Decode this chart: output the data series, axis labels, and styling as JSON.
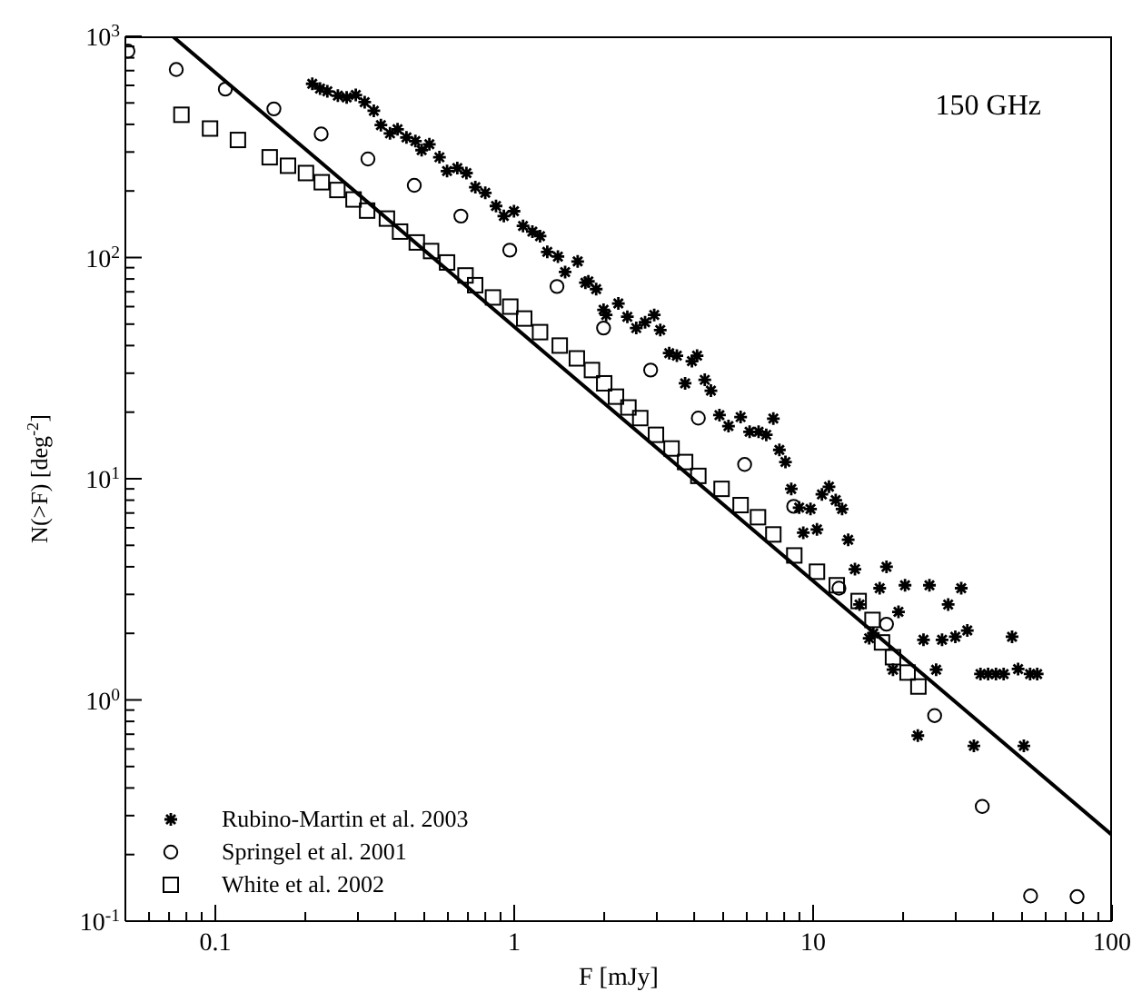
{
  "chart_data": {
    "type": "scatter",
    "xlabel": "F [mJy]",
    "ylabel": "N(>F) [deg$^{-2}$]",
    "annotations": [
      "150 GHz"
    ],
    "log": "xy",
    "grid": false,
    "legend": "bottom left",
    "xlim": [
      0.05,
      100
    ],
    "ylim": [
      0.1,
      1000
    ],
    "xticks": [
      {
        "value": 0.06,
        "label": null
      },
      {
        "value": 0.07,
        "label": null
      },
      {
        "value": 0.08,
        "label": null
      },
      {
        "value": 0.09,
        "label": null
      },
      0.1,
      {
        "value": 0.2,
        "label": null
      },
      {
        "value": 0.3,
        "label": null
      },
      {
        "value": 0.4,
        "label": null
      },
      {
        "value": 0.5,
        "label": null
      },
      {
        "value": 0.6,
        "label": null
      },
      {
        "value": 0.7,
        "label": null
      },
      {
        "value": 0.8,
        "label": null
      },
      {
        "value": 0.9,
        "label": null
      },
      1,
      {
        "value": 2,
        "label": null
      },
      {
        "value": 3,
        "label": null
      },
      {
        "value": 4,
        "label": null
      },
      {
        "value": 5,
        "label": null
      },
      {
        "value": 6,
        "label": null
      },
      {
        "value": 7,
        "label": null
      },
      {
        "value": 8,
        "label": null
      },
      {
        "value": 9,
        "label": null
      },
      10,
      {
        "value": 20,
        "label": null
      },
      {
        "value": 30,
        "label": null
      },
      {
        "value": 40,
        "label": null
      },
      {
        "value": 50,
        "label": null
      },
      {
        "value": 60,
        "label": null
      },
      {
        "value": 70,
        "label": null
      },
      {
        "value": 80,
        "label": null
      },
      {
        "value": 90,
        "label": null
      },
      100
    ],
    "yticks": [
      {
        "value": 0.1,
        "label": "10$^{-1}$"
      },
      {
        "value": 0.2,
        "label": null
      },
      {
        "value": 0.3,
        "label": null
      },
      {
        "value": 0.4,
        "label": null
      },
      {
        "value": 0.5,
        "label": null
      },
      {
        "value": 0.6,
        "label": null
      },
      {
        "value": 0.7,
        "label": null
      },
      {
        "value": 0.8,
        "label": null
      },
      {
        "value": 0.9,
        "label": null
      },
      {
        "value": 1,
        "label": "10$^{0}$"
      },
      {
        "value": 2,
        "label": null
      },
      {
        "value": 3,
        "label": null
      },
      {
        "value": 4,
        "label": null
      },
      {
        "value": 5,
        "label": null
      },
      {
        "value": 6,
        "label": null
      },
      {
        "value": 7,
        "label": null
      },
      {
        "value": 8,
        "label": null
      },
      {
        "value": 9,
        "label": null
      },
      {
        "value": 10,
        "label": "10$^{1}$"
      },
      {
        "value": 20,
        "label": null
      },
      {
        "value": 30,
        "label": null
      },
      {
        "value": 40,
        "label": null
      },
      {
        "value": 50,
        "label": null
      },
      {
        "value": 60,
        "label": null
      },
      {
        "value": 70,
        "label": null
      },
      {
        "value": 80,
        "label": null
      },
      {
        "value": 90,
        "label": null
      },
      {
        "value": 100,
        "label": "10$^{2}$"
      },
      {
        "value": 200,
        "label": null
      },
      {
        "value": 300,
        "label": null
      },
      {
        "value": 400,
        "label": null
      },
      {
        "value": 500,
        "label": null
      },
      {
        "value": 600,
        "label": null
      },
      {
        "value": 700,
        "label": null
      },
      {
        "value": 800,
        "label": null
      },
      {
        "value": 900,
        "label": null
      },
      {
        "value": 1000,
        "label": "10$^{3}$"
      }
    ],
    "series": [
      {
        "name": "Rubino-Martin et al. 2003",
        "marker": "cross",
        "color": "#000000",
        "x": [
          0.211,
          0.224,
          0.237,
          0.257,
          0.275,
          0.295,
          0.316,
          0.339,
          0.358,
          0.384,
          0.407,
          0.436,
          0.467,
          0.49,
          0.52,
          0.562,
          0.596,
          0.645,
          0.692,
          0.741,
          0.8,
          0.869,
          0.923,
          0.998,
          1.07,
          1.15,
          1.22,
          1.29,
          1.4,
          1.48,
          1.63,
          1.73,
          1.77,
          1.88,
          1.99,
          2.03,
          2.23,
          2.39,
          2.56,
          2.74,
          2.94,
          3.08,
          3.3,
          3.5,
          3.73,
          3.93,
          4.09,
          4.34,
          4.55,
          4.86,
          5.21,
          5.72,
          6.13,
          6.57,
          6.97,
          7.36,
          7.71,
          8.08,
          8.45,
          8.98,
          9.27,
          9.8,
          10.3,
          10.7,
          11.3,
          11.9,
          12.5,
          13.1,
          13.8,
          14.3,
          15.4,
          15.9,
          16.7,
          17.6,
          18.5,
          19.3,
          20.3,
          22.4,
          23.4,
          24.5,
          25.8,
          27,
          28.3,
          29.9,
          31.3,
          32.8,
          34.5,
          36.3,
          38.5,
          40.9,
          43.4,
          46.3,
          48.5,
          50.7,
          53.2,
          56.2
        ],
        "values": [
          610,
          581,
          564,
          539,
          529,
          543,
          504,
          461,
          397,
          364,
          380,
          349,
          336,
          306,
          325,
          284,
          246,
          254,
          241,
          208,
          196,
          171,
          154,
          162,
          139,
          131,
          125,
          106,
          101,
          86,
          96,
          77,
          78,
          72,
          58,
          55,
          62,
          54,
          48,
          51,
          55,
          47,
          37,
          36,
          27,
          34,
          36,
          28,
          25,
          19.4,
          17.3,
          19,
          16.3,
          16.3,
          15.8,
          18.7,
          13.5,
          11.9,
          9.0,
          7.4,
          5.7,
          7.3,
          5.9,
          8.5,
          9.2,
          8.0,
          7.3,
          5.3,
          3.9,
          2.7,
          1.9,
          2.0,
          3.2,
          4.0,
          1.37,
          2.5,
          3.3,
          0.69,
          1.87,
          3.3,
          1.37,
          1.87,
          2.7,
          1.93,
          3.2,
          2.06,
          0.62,
          1.31,
          1.31,
          1.31,
          1.31,
          1.93,
          1.38,
          0.62,
          1.31,
          1.31
        ]
      },
      {
        "name": "Springel et al. 2001",
        "marker": "circle",
        "color": "#000000",
        "x": [
          0.051,
          0.074,
          0.108,
          0.157,
          0.226,
          0.324,
          0.463,
          0.663,
          0.966,
          1.39,
          1.99,
          2.86,
          4.13,
          5.9,
          8.61,
          12.2,
          17.6,
          25.5,
          36.8,
          53.4,
          76.4
        ],
        "values": [
          857,
          708,
          577,
          470,
          362,
          279,
          212,
          154,
          108,
          74,
          48,
          31,
          18.8,
          11.6,
          7.5,
          3.2,
          2.2,
          0.85,
          0.33,
          0.13,
          0.129
        ]
      },
      {
        "name": "White et al. 2002",
        "marker": "square",
        "color": "#000000",
        "x": [
          0.077,
          0.096,
          0.119,
          0.152,
          0.175,
          0.201,
          0.227,
          0.256,
          0.29,
          0.322,
          0.375,
          0.415,
          0.472,
          0.527,
          0.596,
          0.687,
          0.74,
          0.849,
          0.97,
          1.08,
          1.22,
          1.42,
          1.62,
          1.82,
          2.0,
          2.19,
          2.41,
          2.64,
          2.98,
          3.36,
          3.73,
          4.13,
          4.94,
          5.72,
          6.54,
          7.36,
          8.65,
          10.3,
          12.0,
          14.2,
          15.8,
          17.0,
          18.5,
          20.7,
          22.5
        ],
        "values": [
          442,
          383,
          340,
          284,
          260,
          241,
          219,
          202,
          183,
          163,
          150,
          131,
          117,
          107,
          95,
          83,
          75,
          66,
          60,
          53,
          46,
          40,
          35,
          31,
          27,
          23.5,
          21,
          18.8,
          15.8,
          13.7,
          11.9,
          10.3,
          9.0,
          7.6,
          6.7,
          5.6,
          4.5,
          3.8,
          3.3,
          2.8,
          2.3,
          1.82,
          1.56,
          1.33,
          1.15
        ]
      },
      {
        "type": "line",
        "marker": "none",
        "line_style": "solid",
        "color": "#000000",
        "x": [
          0.072,
          100
        ],
        "values": [
          1000,
          0.245
        ]
      }
    ]
  }
}
